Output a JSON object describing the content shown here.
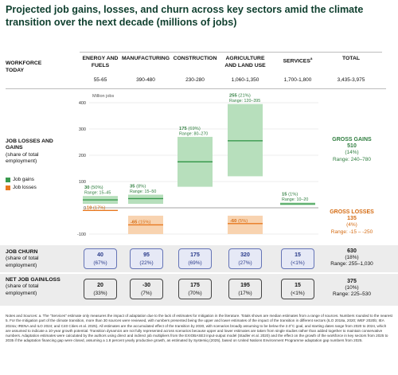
{
  "title": "Projected job gains, losses, and churn across key sectors amid the climate transition over the next decade (millions of jobs)",
  "header": {
    "row_label": "WORKFORCE TODAY",
    "total_label": "TOTAL",
    "sectors": [
      {
        "label": "ENERGY AND FUELS",
        "workforce": "55-65"
      },
      {
        "label": "MANUFACTURING",
        "workforce": "390-480"
      },
      {
        "label": "CONSTRUCTION",
        "workforce": "230-280"
      },
      {
        "label": "AGRICULTURE AND LAND USE",
        "workforce": "1,060-1,350"
      },
      {
        "label": "SERVICES",
        "label_sup": "a",
        "workforce": "1,700-1,800"
      }
    ],
    "total_workforce": "3,435-3,975"
  },
  "chart_rows": {
    "losses_gains_title": "JOB LOSSES AND GAINS",
    "losses_gains_sub": "(share of total employment)",
    "legend_gains": "Job gains",
    "legend_losses": "Job losses",
    "axis_unit": "Million jobs"
  },
  "chart_data": {
    "type": "bar",
    "categories": [
      "ENERGY AND FUELS",
      "MANUFACTURING",
      "CONSTRUCTION",
      "AGRICULTURE AND LAND USE",
      "SERVICES"
    ],
    "ylim": [
      -100,
      400
    ],
    "ticks": [
      400,
      300,
      200,
      100,
      0,
      -100
    ],
    "tick_labels": [
      "400",
      "300",
      "200",
      "100",
      "0",
      "-100"
    ],
    "series": [
      {
        "name": "Job gains",
        "color": "#3a9a4e",
        "range_color": "#b7dfbc",
        "values": [
          30,
          35,
          175,
          255,
          15
        ],
        "range_low": [
          15,
          15,
          80,
          120,
          10
        ],
        "range_high": [
          45,
          50,
          270,
          395,
          20
        ],
        "labels": [
          "30",
          "35",
          "175",
          "255",
          "15"
        ],
        "shares": [
          "(50%)",
          "(8%)",
          "(69%)",
          "(21%)",
          "(1%)"
        ],
        "range_labels": [
          "Range: 15–45",
          "Range: 15–50",
          "Range: 80–270",
          "Range: 120–395",
          "Range: 10–20"
        ]
      },
      {
        "name": "Job losses",
        "color": "#e8781f",
        "range_color": "#f8d3b0",
        "values": [
          -10,
          -65,
          null,
          -60,
          null
        ],
        "range_low": [
          null,
          -100,
          null,
          -100,
          null
        ],
        "range_high": [
          null,
          -30,
          null,
          -30,
          null
        ],
        "labels": [
          "-10",
          "-65",
          "",
          "-60",
          ""
        ],
        "shares": [
          "(17%)",
          "(15%)",
          "",
          "(5%)",
          ""
        ]
      }
    ],
    "gross_gains": {
      "title": "GROSS GAINS",
      "value": "510",
      "share": "(14%)",
      "range": "Range: 240–780"
    },
    "gross_losses": {
      "title": "GROSS LOSSES",
      "value": "135",
      "share": "(4%)",
      "range": "Range: -15 – -250"
    }
  },
  "churn": {
    "title": "JOB CHURN",
    "sub": "(share of total employment)",
    "values": [
      "40",
      "95",
      "175",
      "320",
      "15"
    ],
    "shares": [
      "(67%)",
      "(22%)",
      "(69%)",
      "(27%)",
      "(<1%)"
    ],
    "total_value": "630",
    "total_share": "(18%)",
    "total_range": "Range: 255–1,030"
  },
  "net": {
    "title": "NET JOB GAIN/LOSS",
    "sub": "(share of total employment)",
    "values": [
      "20",
      "-30",
      "175",
      "195",
      "15"
    ],
    "shares": [
      "(33%)",
      "(7%)",
      "(70%)",
      "(17%)",
      "(<1%)"
    ],
    "total_value": "375",
    "total_share": "(10%)",
    "total_range": "Range: 225–530"
  },
  "notes": "Notes and Sources: a. The \"Services\" estimate only measures the impact of adaptation due to the lack of estimates for mitigation in the literature. Totals shown are median estimates from a range of sources. Numbers rounded to the nearest 5. For the mitigation part of the climate transition, more than 30 sources were reviewed, with numbers presented being the upper and lower estimates of the impact of the transition in different sectors (ILO 2018a, 2020; WEF 2020b; IEA 2024a; IRENA and ILO 2024; and C40 Cities et al. 2025). All estimates are the accumulated effect of the transition by 2030, with scenarios broadly assuming to be below the 2.0°C goal, and starting dates range from 2020 to 2024, which are assumed to indicate a 10-year growth potential. Transition dynamics are not fully represented across scenarios because upper and lower estimates are taken from single studies rather than added together to maintain conservative numbers. Adaptation estimates were calculated by the authors using direct and indirect job multipliers from the EXIOBASE3 input-output model (Stadler et al. 2020) and the effect on the growth of the workforce in key sectors from 2025 to 2035 if the adaptation financing gap were closed, assuming a 1.8 percent yearly productive growth, as estimated by Systemiq (2025), based on United Nations Environment Programme adaptation gap numbers from 2025."
}
